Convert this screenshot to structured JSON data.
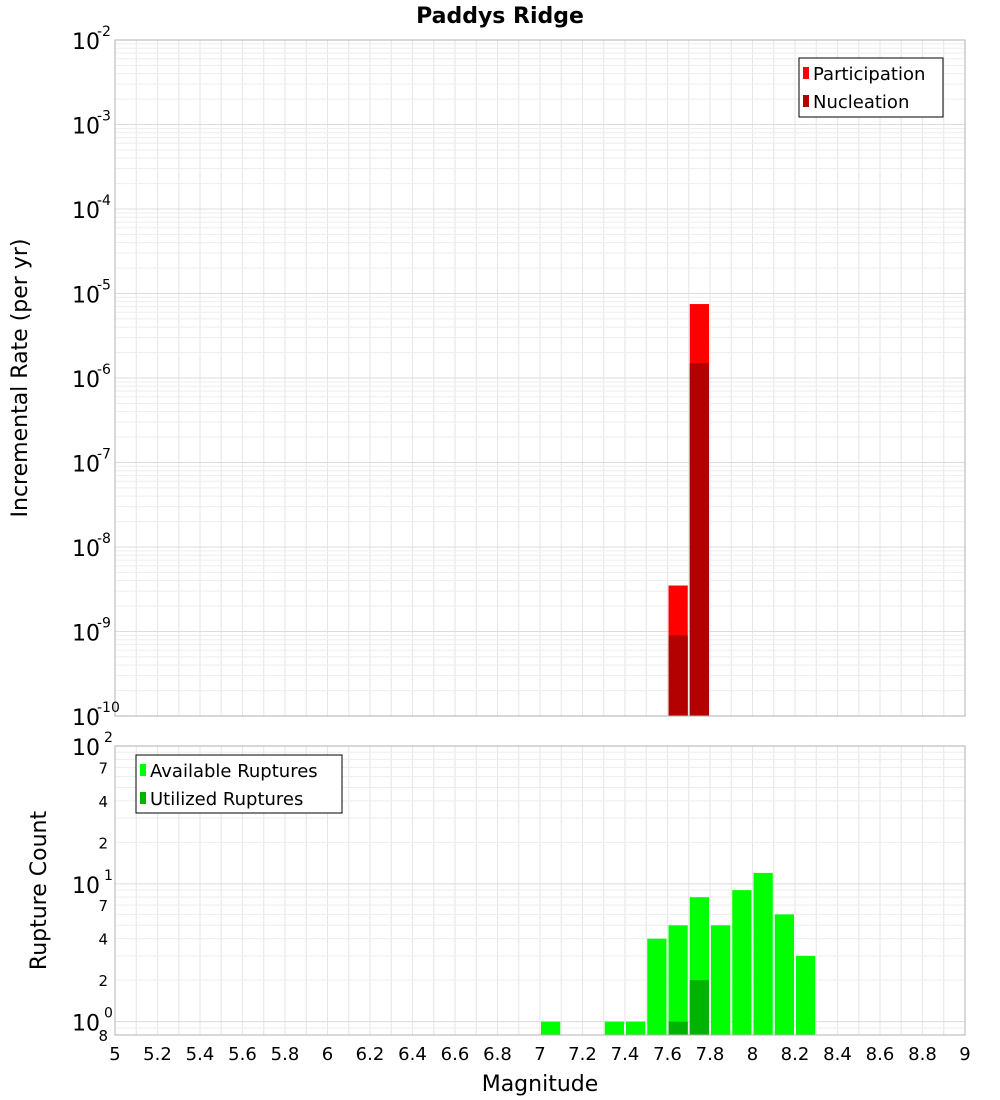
{
  "title": "Paddys Ridge",
  "colors": {
    "participation": "#ff0000",
    "nucleation": "#b30000",
    "available": "#00ff00",
    "utilized": "#00b300",
    "grid": "#e6e6e6",
    "frame": "#b0b0b0"
  },
  "chart_data": [
    {
      "type": "bar",
      "panel": "top",
      "xlabel": "Magnitude",
      "ylabel": "Incremental Rate (per yr)",
      "y_scale": "log",
      "xlim": [
        5,
        9
      ],
      "ylim": [
        1e-10,
        0.01
      ],
      "y_ticks": [
        {
          "base": "10",
          "exp": "-2"
        },
        {
          "base": "10",
          "exp": "-3"
        },
        {
          "base": "10",
          "exp": "-4"
        },
        {
          "base": "10",
          "exp": "-5"
        },
        {
          "base": "10",
          "exp": "-6"
        },
        {
          "base": "10",
          "exp": "-7"
        },
        {
          "base": "10",
          "exp": "-8"
        },
        {
          "base": "10",
          "exp": "-9"
        },
        {
          "base": "10",
          "exp": "-10"
        }
      ],
      "legend": [
        "Participation",
        "Nucleation"
      ],
      "legend_position": "top-right",
      "grid": true,
      "series": [
        {
          "name": "Participation",
          "bins": [
            {
              "x": 7.65,
              "y": 3.5e-09
            },
            {
              "x": 7.75,
              "y": 7.5e-06
            }
          ]
        },
        {
          "name": "Nucleation",
          "bins": [
            {
              "x": 7.65,
              "y": 9e-10
            },
            {
              "x": 7.75,
              "y": 1.5e-06
            }
          ]
        }
      ]
    },
    {
      "type": "bar",
      "panel": "bottom",
      "xlabel": "Magnitude",
      "ylabel": "Rupture Count",
      "y_scale": "log",
      "xlim": [
        5,
        9
      ],
      "ylim": [
        0.8,
        100
      ],
      "x_ticks": [
        "5",
        "5.2",
        "5.4",
        "5.6",
        "5.8",
        "6",
        "6.2",
        "6.4",
        "6.6",
        "6.8",
        "7",
        "7.2",
        "7.4",
        "7.6",
        "7.8",
        "8",
        "8.2",
        "8.4",
        "8.6",
        "8.8",
        "9"
      ],
      "y_major_ticks": [
        {
          "value": 100,
          "base": "10",
          "exp": "2"
        },
        {
          "value": 10,
          "base": "10",
          "exp": "1"
        },
        {
          "value": 1,
          "base": "10",
          "exp": "0"
        }
      ],
      "y_minor_ticks": [
        {
          "value": 7,
          "label": "7"
        },
        {
          "value": 4,
          "label": "4"
        },
        {
          "value": 2,
          "label": "2"
        },
        {
          "value": 70,
          "label": "7"
        },
        {
          "value": 40,
          "label": "4"
        },
        {
          "value": 20,
          "label": "2"
        },
        {
          "value": 0.8,
          "label": "8"
        }
      ],
      "legend": [
        "Available Ruptures",
        "Utilized Ruptures"
      ],
      "legend_position": "top-left",
      "grid": true,
      "series": [
        {
          "name": "Available Ruptures",
          "bins": [
            {
              "x": 7.05,
              "y": 1
            },
            {
              "x": 7.35,
              "y": 1
            },
            {
              "x": 7.45,
              "y": 1
            },
            {
              "x": 7.55,
              "y": 4
            },
            {
              "x": 7.65,
              "y": 5
            },
            {
              "x": 7.75,
              "y": 8
            },
            {
              "x": 7.85,
              "y": 5
            },
            {
              "x": 7.95,
              "y": 9
            },
            {
              "x": 8.05,
              "y": 12
            },
            {
              "x": 8.15,
              "y": 6
            },
            {
              "x": 8.25,
              "y": 3
            }
          ]
        },
        {
          "name": "Utilized Ruptures",
          "bins": [
            {
              "x": 7.65,
              "y": 1
            },
            {
              "x": 7.75,
              "y": 2
            }
          ]
        }
      ]
    }
  ]
}
